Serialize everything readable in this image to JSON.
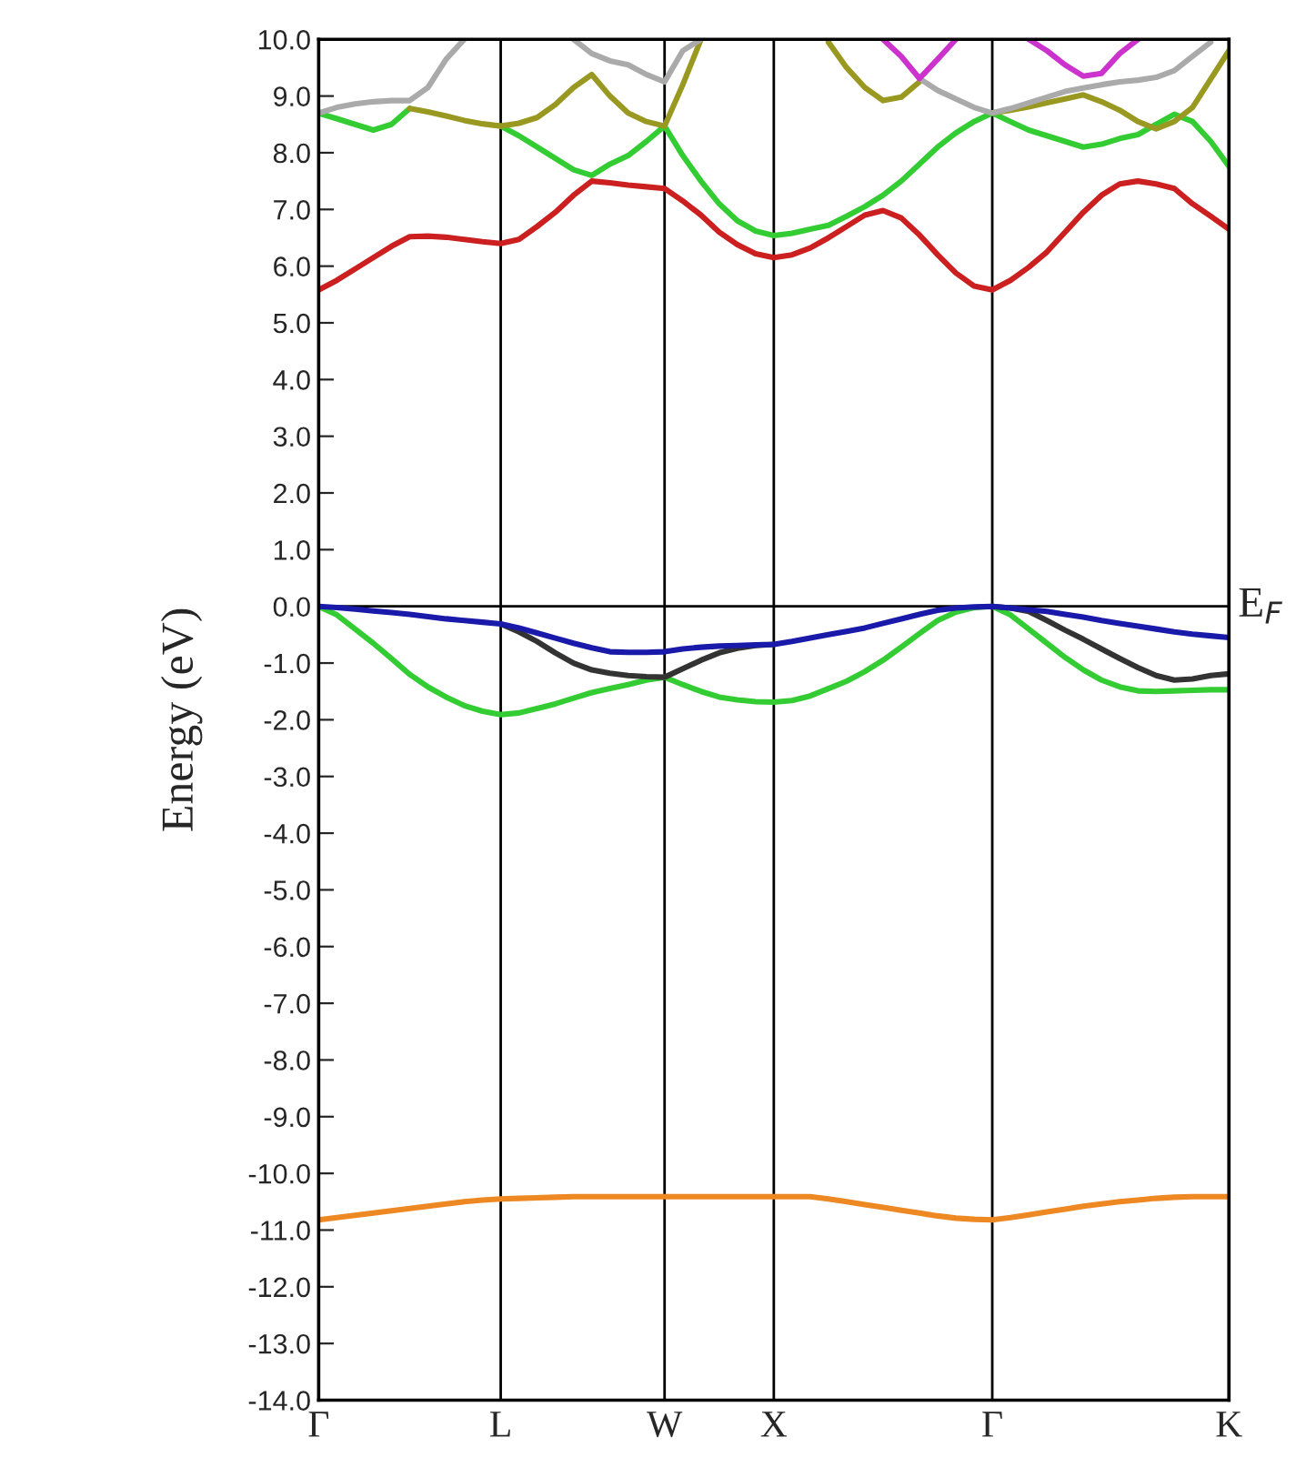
{
  "chart_data": {
    "type": "line",
    "ylabel": "Energy (eV)",
    "categories": [
      "Γ",
      null,
      null,
      null,
      null,
      null,
      null,
      null,
      null,
      null,
      "L",
      null,
      null,
      null,
      null,
      null,
      null,
      null,
      null,
      "W",
      null,
      null,
      null,
      null,
      null,
      "X",
      null,
      null,
      null,
      null,
      null,
      null,
      null,
      null,
      null,
      null,
      null,
      "Γ",
      null,
      null,
      null,
      null,
      null,
      null,
      null,
      null,
      null,
      null,
      null,
      null,
      "K"
    ],
    "ylim": [
      -14,
      10
    ],
    "yticks": [
      {
        "value": 10,
        "label": "10.0"
      },
      {
        "value": 9,
        "label": "9.0"
      },
      {
        "value": 8,
        "label": "8.0"
      },
      {
        "value": 7,
        "label": "7.0"
      },
      {
        "value": 6,
        "label": "6.0"
      },
      {
        "value": 5,
        "label": "5.0"
      },
      {
        "value": 4,
        "label": "4.0"
      },
      {
        "value": 3,
        "label": "3.0"
      },
      {
        "value": 2,
        "label": "2.0"
      },
      {
        "value": 1,
        "label": "1.0"
      },
      {
        "value": 0,
        "label": "0.0"
      },
      {
        "value": -1,
        "label": "-1.0"
      },
      {
        "value": -2,
        "label": "-2.0"
      },
      {
        "value": -3,
        "label": "-3.0"
      },
      {
        "value": -4,
        "label": "-4.0"
      },
      {
        "value": -5,
        "label": "-5.0"
      },
      {
        "value": -6,
        "label": "-6.0"
      },
      {
        "value": -7,
        "label": "-7.0"
      },
      {
        "value": -8,
        "label": "-8.0"
      },
      {
        "value": -9,
        "label": "-9.0"
      },
      {
        "value": -10,
        "label": "-10.0"
      },
      {
        "value": -11,
        "label": "-11.0"
      },
      {
        "value": -12,
        "label": "-12.0"
      },
      {
        "value": -13,
        "label": "-13.0"
      },
      {
        "value": -14,
        "label": "-14.0"
      }
    ],
    "grid": "x",
    "line_style": "solid",
    "ref_lines": [
      {
        "axis": "y",
        "value": 0,
        "label": "E$_{F}$",
        "color": "#000000"
      }
    ],
    "series": [
      {
        "color": "#cc2020",
        "values": [
          5.58,
          5.75,
          5.95,
          6.15,
          6.35,
          6.52,
          6.53,
          6.51,
          6.47,
          6.43,
          6.4,
          6.47,
          6.7,
          6.95,
          7.25,
          7.5,
          7.47,
          7.43,
          7.4,
          7.37,
          7.15,
          6.9,
          6.6,
          6.38,
          6.22,
          6.15,
          6.2,
          6.32,
          6.5,
          6.7,
          6.9,
          6.98,
          6.85,
          6.55,
          6.2,
          5.88,
          5.65,
          5.58,
          5.75,
          5.98,
          6.25,
          6.6,
          6.95,
          7.25,
          7.45,
          7.5,
          7.45,
          7.37,
          7.1,
          6.88,
          6.65
        ]
      },
      {
        "color": "#33cc33",
        "values": [
          8.7,
          8.6,
          8.5,
          8.4,
          8.5,
          8.78,
          null,
          null,
          null,
          null,
          null,
          null,
          null,
          null,
          null,
          null,
          null,
          null,
          null,
          null,
          null,
          null,
          null,
          null,
          null,
          null,
          null,
          null,
          null,
          null,
          null,
          null,
          null,
          null,
          null,
          null,
          null,
          null,
          null,
          null,
          null,
          null,
          null,
          null,
          null,
          null,
          null,
          null,
          null,
          null,
          null
        ]
      },
      {
        "color": "#33cc33",
        "values": [
          null,
          null,
          null,
          null,
          null,
          null,
          null,
          null,
          null,
          null,
          8.47,
          8.3,
          8.1,
          7.9,
          7.7,
          7.6,
          7.8,
          7.95,
          8.2,
          8.47,
          7.95,
          7.5,
          7.1,
          6.8,
          6.62,
          6.54,
          6.58,
          6.65,
          6.72,
          6.88,
          7.05,
          7.25,
          7.5,
          7.8,
          8.1,
          8.35,
          8.55,
          8.7,
          8.55,
          8.4,
          8.3,
          8.2,
          8.1,
          8.15,
          8.25,
          8.32,
          8.5,
          8.68,
          8.55,
          8.2,
          7.76
        ]
      },
      {
        "color": "#999922",
        "values": [
          null,
          null,
          null,
          null,
          null,
          8.78,
          8.72,
          8.65,
          8.57,
          8.51,
          8.47,
          8.52,
          8.62,
          8.85,
          9.15,
          9.38,
          9.0,
          8.7,
          8.55,
          8.47,
          9.2,
          10.0,
          null,
          null,
          null,
          null,
          null,
          null,
          null,
          null,
          null,
          null,
          null,
          null,
          null,
          null,
          null,
          null,
          null,
          null,
          null,
          null,
          null,
          null,
          null,
          null,
          null,
          null,
          null,
          null,
          null
        ]
      },
      {
        "color": "#999922",
        "values": [
          null,
          null,
          null,
          null,
          null,
          null,
          null,
          null,
          null,
          null,
          null,
          null,
          null,
          null,
          null,
          null,
          null,
          null,
          null,
          null,
          null,
          null,
          null,
          null,
          null,
          null,
          null,
          null,
          9.95,
          9.5,
          9.15,
          8.92,
          8.98,
          9.25,
          null,
          null,
          null,
          null,
          null,
          null,
          null,
          null,
          null,
          null,
          null,
          null,
          null,
          null,
          null,
          null,
          null
        ]
      },
      {
        "color": "#999922",
        "values": [
          null,
          null,
          null,
          null,
          null,
          null,
          null,
          null,
          null,
          null,
          null,
          null,
          null,
          null,
          null,
          null,
          null,
          null,
          null,
          null,
          null,
          null,
          null,
          null,
          null,
          null,
          null,
          null,
          null,
          null,
          null,
          null,
          null,
          null,
          null,
          null,
          null,
          8.7,
          8.75,
          8.81,
          8.88,
          8.95,
          9.02,
          8.9,
          8.75,
          8.55,
          8.42,
          8.55,
          8.8,
          9.3,
          9.8
        ]
      },
      {
        "color": "#aaaaaa",
        "values": [
          8.7,
          8.8,
          8.86,
          8.9,
          8.92,
          8.92,
          9.15,
          9.65,
          10.0,
          null,
          null,
          null,
          null,
          null,
          null,
          null,
          null,
          null,
          null,
          null,
          null,
          null,
          null,
          null,
          null,
          null,
          null,
          null,
          null,
          null,
          null,
          null,
          null,
          null,
          null,
          null,
          null,
          null,
          null,
          null,
          null,
          null,
          null,
          null,
          null,
          null,
          null,
          null,
          null,
          null,
          null
        ]
      },
      {
        "color": "#aaaaaa",
        "values": [
          null,
          null,
          null,
          null,
          null,
          null,
          null,
          null,
          null,
          null,
          null,
          null,
          null,
          null,
          10.0,
          9.75,
          9.62,
          9.55,
          9.38,
          9.25,
          9.8,
          10.0,
          null,
          null,
          null,
          null,
          null,
          null,
          null,
          null,
          null,
          null,
          null,
          null,
          null,
          null,
          null,
          null,
          null,
          null,
          null,
          null,
          null,
          null,
          null,
          null,
          null,
          null,
          null,
          null,
          null
        ]
      },
      {
        "color": "#aaaaaa",
        "values": [
          null,
          null,
          null,
          null,
          null,
          null,
          null,
          null,
          null,
          null,
          null,
          null,
          null,
          null,
          null,
          null,
          null,
          null,
          null,
          null,
          null,
          null,
          null,
          null,
          null,
          null,
          null,
          null,
          null,
          null,
          null,
          null,
          null,
          9.31,
          9.1,
          8.95,
          8.8,
          8.7,
          8.78,
          8.88,
          8.98,
          9.08,
          9.14,
          9.2,
          9.25,
          9.28,
          9.33,
          9.45,
          9.7,
          9.95,
          null
        ]
      },
      {
        "color": "#cc33cc",
        "values": [
          null,
          null,
          null,
          null,
          null,
          null,
          null,
          null,
          null,
          null,
          null,
          null,
          null,
          null,
          null,
          null,
          null,
          null,
          null,
          null,
          null,
          null,
          null,
          null,
          null,
          null,
          null,
          null,
          null,
          null,
          null,
          10.0,
          9.7,
          9.31,
          9.65,
          10.0,
          null,
          null,
          null,
          null,
          null,
          null,
          null,
          null,
          null,
          null,
          null,
          null,
          null,
          null,
          null
        ]
      },
      {
        "color": "#cc33cc",
        "values": [
          null,
          null,
          null,
          null,
          null,
          null,
          null,
          null,
          null,
          null,
          null,
          null,
          null,
          null,
          null,
          null,
          null,
          null,
          null,
          null,
          null,
          null,
          null,
          null,
          null,
          null,
          null,
          null,
          null,
          null,
          null,
          null,
          null,
          null,
          null,
          null,
          null,
          null,
          null,
          10.0,
          9.8,
          9.55,
          9.35,
          9.4,
          9.75,
          10.0,
          null,
          null,
          null,
          null,
          null
        ]
      },
      {
        "color": "#33cc33",
        "values": [
          0,
          -0.15,
          -0.4,
          -0.65,
          -0.92,
          -1.2,
          -1.42,
          -1.6,
          -1.75,
          -1.85,
          -1.91,
          -1.88,
          -1.8,
          -1.72,
          -1.62,
          -1.52,
          -1.45,
          -1.38,
          -1.3,
          -1.25,
          -1.38,
          -1.5,
          -1.6,
          -1.65,
          -1.68,
          -1.69,
          -1.66,
          -1.58,
          -1.45,
          -1.32,
          -1.15,
          -0.95,
          -0.72,
          -0.48,
          -0.25,
          -0.1,
          -0.02,
          0,
          -0.15,
          -0.4,
          -0.65,
          -0.9,
          -1.12,
          -1.3,
          -1.42,
          -1.49,
          -1.5,
          -1.49,
          -1.48,
          -1.47,
          -1.47
        ]
      },
      {
        "color": "#333333",
        "values": [
          null,
          null,
          null,
          null,
          null,
          null,
          null,
          null,
          null,
          null,
          -0.31,
          -0.45,
          -0.62,
          -0.82,
          -1.0,
          -1.12,
          -1.18,
          -1.22,
          -1.24,
          -1.25,
          -1.1,
          -0.95,
          -0.82,
          -0.74,
          -0.69,
          -0.67,
          null,
          null,
          null,
          null,
          null,
          null,
          null,
          null,
          null,
          null,
          null,
          null,
          null,
          null,
          null,
          null,
          null,
          null,
          null,
          null,
          null,
          null,
          null,
          null,
          null
        ]
      },
      {
        "color": "#333333",
        "values": [
          null,
          null,
          null,
          null,
          null,
          null,
          null,
          null,
          null,
          null,
          null,
          null,
          null,
          null,
          null,
          null,
          null,
          null,
          null,
          null,
          null,
          null,
          null,
          null,
          null,
          null,
          null,
          null,
          null,
          null,
          null,
          null,
          null,
          null,
          null,
          null,
          null,
          0,
          -0.03,
          -0.09,
          -0.25,
          -0.42,
          -0.58,
          -0.75,
          -0.92,
          -1.08,
          -1.22,
          -1.3,
          -1.28,
          -1.22,
          -1.19
        ]
      },
      {
        "color": "#1a1aaa",
        "values": [
          0,
          -0.02,
          -0.05,
          -0.08,
          -0.11,
          -0.14,
          -0.18,
          -0.22,
          -0.25,
          -0.28,
          -0.31,
          -0.38,
          -0.47,
          -0.56,
          -0.65,
          -0.73,
          -0.8,
          -0.81,
          -0.81,
          -0.8,
          -0.75,
          -0.72,
          -0.7,
          -0.69,
          -0.68,
          -0.67,
          -0.62,
          -0.56,
          -0.5,
          -0.44,
          -0.38,
          -0.3,
          -0.22,
          -0.14,
          -0.07,
          -0.03,
          -0.01,
          0,
          -0.03,
          -0.06,
          -0.09,
          -0.14,
          -0.19,
          -0.25,
          -0.3,
          -0.35,
          -0.4,
          -0.45,
          -0.49,
          -0.52,
          -0.55
        ]
      },
      {
        "color": "#ee8822",
        "values": [
          -10.82,
          -10.78,
          -10.74,
          -10.7,
          -10.66,
          -10.62,
          -10.58,
          -10.54,
          -10.5,
          -10.47,
          -10.45,
          -10.44,
          -10.43,
          -10.42,
          -10.41,
          -10.41,
          -10.41,
          -10.41,
          -10.41,
          -10.41,
          -10.41,
          -10.41,
          -10.41,
          -10.41,
          -10.41,
          -10.41,
          -10.41,
          -10.41,
          -10.45,
          -10.5,
          -10.55,
          -10.6,
          -10.65,
          -10.7,
          -10.75,
          -10.79,
          -10.81,
          -10.82,
          -10.78,
          -10.73,
          -10.68,
          -10.63,
          -10.58,
          -10.54,
          -10.5,
          -10.47,
          -10.44,
          -10.42,
          -10.41,
          -10.41,
          -10.41
        ]
      }
    ]
  }
}
